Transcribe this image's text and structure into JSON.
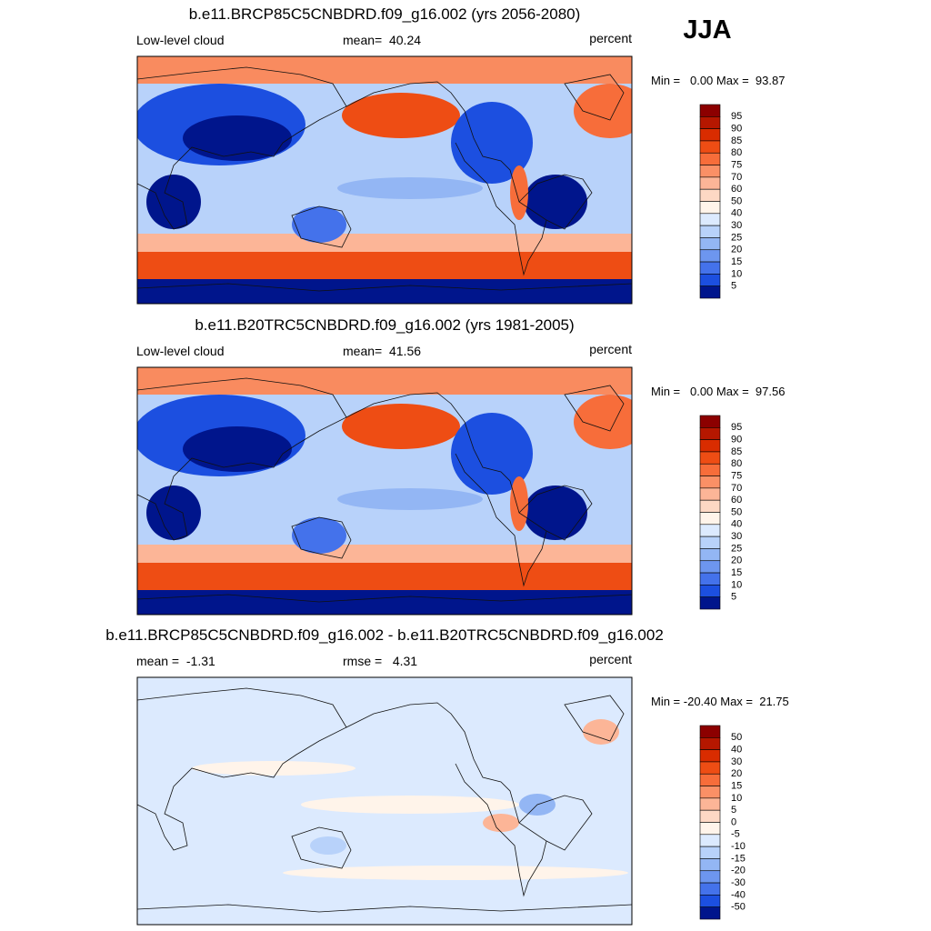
{
  "season": "JJA",
  "panels": [
    {
      "title": "b.e11.BRCP85C5CNBDRD.f09_g16.002 (yrs 2056-2080)",
      "left": "Low-level cloud",
      "center": "mean=  40.24",
      "right": "percent",
      "range": "Min =   0.00 Max =  93.87",
      "colorbar": {
        "labels": [
          "95",
          "90",
          "85",
          "80",
          "75",
          "70",
          "60",
          "50",
          "40",
          "30",
          "25",
          "20",
          "15",
          "10",
          "5"
        ],
        "colors": [
          "#8c0000",
          "#b51700",
          "#d92c00",
          "#ee4d14",
          "#f76d3a",
          "#fa9066",
          "#fcb597",
          "#fdd8c4",
          "#fff4ea",
          "#dceafe",
          "#b8d2fa",
          "#93b6f4",
          "#6d96ef",
          "#4472eb",
          "#1c4fe0",
          "#00158c"
        ]
      }
    },
    {
      "title": "b.e11.B20TRC5CNBDRD.f09_g16.002 (yrs 1981-2005)",
      "left": "Low-level cloud",
      "center": "mean=  41.56",
      "right": "percent",
      "range": "Min =   0.00 Max =  97.56",
      "colorbar": {
        "labels": [
          "95",
          "90",
          "85",
          "80",
          "75",
          "70",
          "60",
          "50",
          "40",
          "30",
          "25",
          "20",
          "15",
          "10",
          "5"
        ],
        "colors": [
          "#8c0000",
          "#b51700",
          "#d92c00",
          "#ee4d14",
          "#f76d3a",
          "#fa9066",
          "#fcb597",
          "#fdd8c4",
          "#fff4ea",
          "#dceafe",
          "#b8d2fa",
          "#93b6f4",
          "#6d96ef",
          "#4472eb",
          "#1c4fe0",
          "#00158c"
        ]
      }
    },
    {
      "title": "b.e11.BRCP85C5CNBDRD.f09_g16.002 - b.e11.B20TRC5CNBDRD.f09_g16.002",
      "left": "mean =  -1.31",
      "center": "rmse =   4.31",
      "right": "percent",
      "range": "Min = -20.40 Max =  21.75",
      "colorbar": {
        "labels": [
          "50",
          "40",
          "30",
          "20",
          "15",
          "10",
          "5",
          "0",
          "-5",
          "-10",
          "-15",
          "-20",
          "-30",
          "-40",
          "-50"
        ],
        "colors": [
          "#8c0000",
          "#b51700",
          "#d92c00",
          "#ee4d14",
          "#f76d3a",
          "#fa9066",
          "#fcb597",
          "#fdd8c4",
          "#fff4ea",
          "#dceafe",
          "#b8d2fa",
          "#93b6f4",
          "#6d96ef",
          "#4472eb",
          "#1c4fe0",
          "#00158c"
        ]
      }
    }
  ]
}
